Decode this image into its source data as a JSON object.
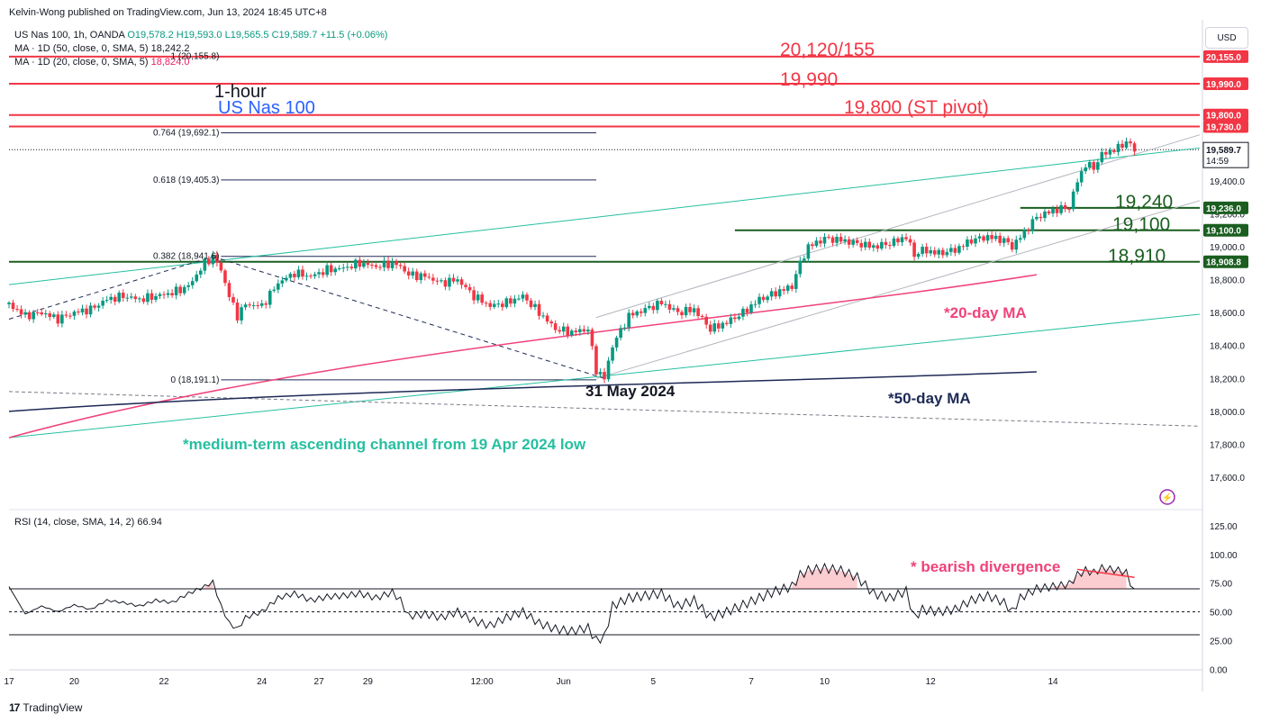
{
  "header": {
    "published": "Kelvin-Wong published on TradingView.com, Jun 13, 2024 18:45 UTC+8"
  },
  "legend": {
    "symbol": "US Nas 100, 1h, OANDA",
    "ohlc": "O19,578.2 H19,593.0 L19,565.5 C19,589.7 +11.5 (+0.06%)",
    "ma50_label": "MA · 1D (50, close, 0, SMA, 5)",
    "ma50_value": "18,242.2",
    "ma20_label": "MA · 1D (20, close, 0, SMA, 5)",
    "ma20_value": "18,824.0"
  },
  "currency": "USD",
  "rsi_legend": "RSI (14, close, SMA, 14, 2) 66.94",
  "footer": {
    "brand": "TradingView"
  },
  "colors": {
    "up": "#089981",
    "down": "#f23645",
    "resistance": "#f23645",
    "support": "#1b5e20",
    "channel": "#26bfa0",
    "ma20": "#f0437a",
    "ma50": "#1e2a55",
    "rsi": "#131722",
    "blue_title": "#2962ff"
  },
  "chart_data": {
    "type": "candlestick",
    "title": "1-hour",
    "subtitle": "US Nas 100",
    "y_ticks": [
      "17,600.0",
      "17,800.0",
      "18,000.0",
      "18,200.0",
      "18,400.0",
      "18,600.0",
      "18,800.0",
      "19,000.0",
      "19,200.0",
      "19,400.0"
    ],
    "ylim": [
      17500,
      20200
    ],
    "x_ticks": [
      "17",
      "20",
      "22",
      "24",
      "27",
      "29",
      "12:00",
      "Jun",
      "5",
      "7",
      "10",
      "12",
      "14"
    ],
    "price_path": [
      [
        0,
        18650
      ],
      [
        2,
        18580
      ],
      [
        4,
        18600
      ],
      [
        6,
        18560
      ],
      [
        8,
        18600
      ],
      [
        10,
        18620
      ],
      [
        12,
        18680
      ],
      [
        14,
        18700
      ],
      [
        16,
        18680
      ],
      [
        18,
        18700
      ],
      [
        20,
        18720
      ],
      [
        22,
        18760
      ],
      [
        24,
        18900
      ],
      [
        25,
        18940
      ],
      [
        26,
        18860
      ],
      [
        27,
        18700
      ],
      [
        28,
        18580
      ],
      [
        29,
        18650
      ],
      [
        31,
        18640
      ],
      [
        33,
        18780
      ],
      [
        35,
        18840
      ],
      [
        37,
        18820
      ],
      [
        39,
        18860
      ],
      [
        41,
        18870
      ],
      [
        43,
        18900
      ],
      [
        45,
        18880
      ],
      [
        47,
        18900
      ],
      [
        48,
        18880
      ],
      [
        49,
        18830
      ],
      [
        51,
        18820
      ],
      [
        53,
        18780
      ],
      [
        55,
        18800
      ],
      [
        57,
        18700
      ],
      [
        59,
        18640
      ],
      [
        61,
        18660
      ],
      [
        63,
        18700
      ],
      [
        65,
        18600
      ],
      [
        67,
        18500
      ],
      [
        69,
        18480
      ],
      [
        71,
        18500
      ],
      [
        72,
        18250
      ],
      [
        73,
        18200
      ],
      [
        74,
        18400
      ],
      [
        76,
        18580
      ],
      [
        78,
        18620
      ],
      [
        80,
        18660
      ],
      [
        82,
        18600
      ],
      [
        84,
        18620
      ],
      [
        86,
        18500
      ],
      [
        88,
        18540
      ],
      [
        90,
        18600
      ],
      [
        92,
        18680
      ],
      [
        94,
        18720
      ],
      [
        96,
        18760
      ],
      [
        97,
        18900
      ],
      [
        98,
        19000
      ],
      [
        100,
        19050
      ],
      [
        102,
        19040
      ],
      [
        104,
        19020
      ],
      [
        106,
        19000
      ],
      [
        108,
        19020
      ],
      [
        110,
        19060
      ],
      [
        111,
        18950
      ],
      [
        112,
        18980
      ],
      [
        114,
        18960
      ],
      [
        116,
        18980
      ],
      [
        118,
        19040
      ],
      [
        120,
        19060
      ],
      [
        122,
        19040
      ],
      [
        123,
        19000
      ],
      [
        124,
        19060
      ],
      [
        126,
        19180
      ],
      [
        128,
        19220
      ],
      [
        130,
        19240
      ],
      [
        131,
        19400
      ],
      [
        132,
        19500
      ],
      [
        133,
        19480
      ],
      [
        134,
        19560
      ],
      [
        136,
        19600
      ],
      [
        137,
        19640
      ],
      [
        138,
        19589.7
      ]
    ],
    "current_price": "19,589.7",
    "countdown": "14:59",
    "price_labels": [
      {
        "value": 20155.0,
        "text": "20,155.0",
        "kind": "resistance"
      },
      {
        "value": 19990.0,
        "text": "19,990.0",
        "kind": "resistance"
      },
      {
        "value": 19800.0,
        "text": "19,800.0",
        "kind": "resistance"
      },
      {
        "value": 19730.0,
        "text": "19,730.0",
        "kind": "resistance"
      },
      {
        "value": 19236.0,
        "text": "19,236.0",
        "kind": "support"
      },
      {
        "value": 19100.0,
        "text": "19,100.0",
        "kind": "support"
      },
      {
        "value": 18908.8,
        "text": "18,908.8",
        "kind": "support"
      }
    ],
    "fib_levels": [
      {
        "text": "1 (20,155.8)",
        "value": 20155.8
      },
      {
        "text": "0.764 (19,692.1)",
        "value": 19692.1
      },
      {
        "text": "0.618 (19,405.3)",
        "value": 19405.3
      },
      {
        "text": "0.382 (18,941.6)",
        "value": 18941.6
      },
      {
        "text": "0 (18,191.1)",
        "value": 18191.1
      }
    ],
    "annotations": {
      "res1": "20,120/155",
      "res2": "19,990",
      "res3": "19,800 (ST pivot)",
      "sup1": "19,240",
      "sup2": "19,100",
      "sup3": "18,910",
      "ma20": "*20-day MA",
      "ma50": "*50-day MA",
      "date_low": "31 May 2024",
      "channel": "*medium-term ascending channel from 19 Apr 2024 low",
      "divergence": "* bearish divergence"
    },
    "rsi": {
      "ticks": [
        "125.00",
        "100.00",
        "75.00",
        "50.00",
        "25.00",
        "0.00"
      ],
      "ylim": [
        0,
        125
      ],
      "levels": [
        70,
        50,
        30
      ],
      "path": [
        [
          0,
          72
        ],
        [
          2,
          48
        ],
        [
          4,
          55
        ],
        [
          6,
          50
        ],
        [
          8,
          56
        ],
        [
          10,
          52
        ],
        [
          12,
          60
        ],
        [
          14,
          58
        ],
        [
          16,
          55
        ],
        [
          18,
          60
        ],
        [
          20,
          58
        ],
        [
          22,
          66
        ],
        [
          24,
          72
        ],
        [
          25,
          76
        ],
        [
          26,
          55
        ],
        [
          27,
          40
        ],
        [
          28,
          35
        ],
        [
          29,
          45
        ],
        [
          31,
          50
        ],
        [
          33,
          62
        ],
        [
          35,
          66
        ],
        [
          37,
          60
        ],
        [
          39,
          63
        ],
        [
          41,
          64
        ],
        [
          43,
          66
        ],
        [
          45,
          62
        ],
        [
          47,
          67
        ],
        [
          48,
          60
        ],
        [
          49,
          46
        ],
        [
          51,
          48
        ],
        [
          53,
          45
        ],
        [
          55,
          50
        ],
        [
          57,
          42
        ],
        [
          59,
          38
        ],
        [
          61,
          45
        ],
        [
          63,
          50
        ],
        [
          65,
          40
        ],
        [
          67,
          35
        ],
        [
          69,
          33
        ],
        [
          71,
          36
        ],
        [
          72,
          25
        ],
        [
          73,
          28
        ],
        [
          74,
          55
        ],
        [
          76,
          62
        ],
        [
          78,
          64
        ],
        [
          80,
          66
        ],
        [
          82,
          55
        ],
        [
          84,
          60
        ],
        [
          86,
          45
        ],
        [
          88,
          50
        ],
        [
          90,
          56
        ],
        [
          92,
          62
        ],
        [
          94,
          68
        ],
        [
          96,
          72
        ],
        [
          97,
          82
        ],
        [
          98,
          86
        ],
        [
          100,
          88
        ],
        [
          102,
          86
        ],
        [
          104,
          80
        ],
        [
          106,
          66
        ],
        [
          108,
          62
        ],
        [
          110,
          68
        ],
        [
          111,
          45
        ],
        [
          112,
          52
        ],
        [
          114,
          50
        ],
        [
          116,
          52
        ],
        [
          118,
          60
        ],
        [
          120,
          64
        ],
        [
          122,
          58
        ],
        [
          123,
          50
        ],
        [
          124,
          62
        ],
        [
          126,
          70
        ],
        [
          128,
          72
        ],
        [
          130,
          74
        ],
        [
          131,
          82
        ],
        [
          132,
          86
        ],
        [
          133,
          84
        ],
        [
          134,
          88
        ],
        [
          136,
          86
        ],
        [
          137,
          84
        ],
        [
          138,
          66.94
        ]
      ],
      "divergence_highs": [
        [
          131,
          87
        ],
        [
          138,
          80
        ]
      ]
    }
  }
}
